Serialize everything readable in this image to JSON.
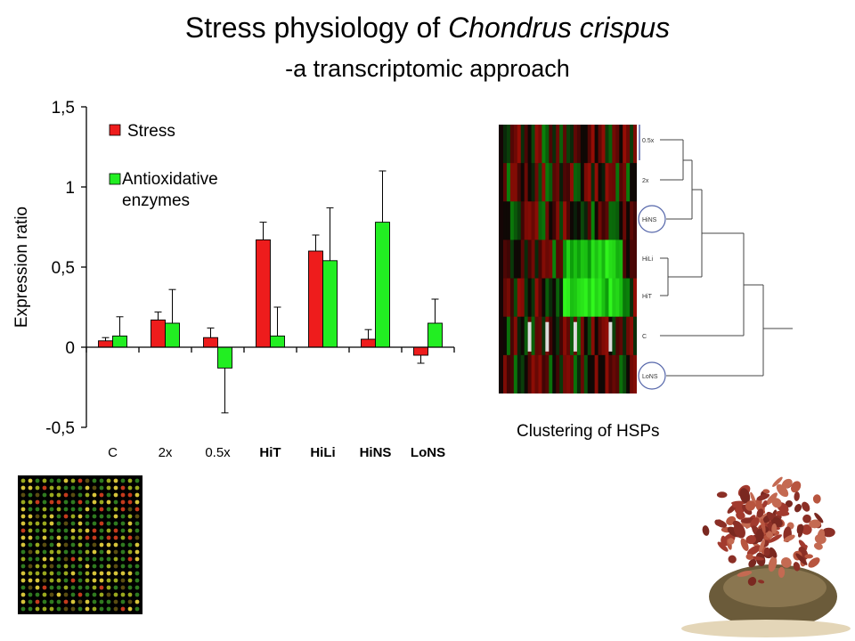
{
  "slide": {
    "title_main": "Stress physiology of ",
    "title_italic": "Chondrus crispus",
    "subtitle": "-a transcriptomic approach"
  },
  "chart_data": {
    "type": "bar",
    "categories": [
      "C",
      "2x",
      "0.5x",
      "HiT",
      "HiLi",
      "HiNS",
      "LoNS"
    ],
    "category_bold": [
      false,
      false,
      false,
      true,
      true,
      true,
      true
    ],
    "ylabel": "Expression ratio",
    "ylim": [
      -0.5,
      1.5
    ],
    "yticks": [
      -0.5,
      0,
      0.5,
      1,
      1.5
    ],
    "ytick_labels": [
      "-0,5",
      "0",
      "0,5",
      "1",
      "1,5"
    ],
    "legend_position": "top-left",
    "series": [
      {
        "name": "Stress",
        "color": "#ee1c1c",
        "values": [
          0.04,
          0.17,
          0.06,
          0.67,
          0.6,
          0.05,
          -0.05
        ],
        "errors": [
          0.02,
          0.05,
          0.06,
          0.11,
          0.1,
          0.06,
          0.05
        ]
      },
      {
        "name": "Antioxidative enzymes",
        "name_lines": [
          "Antioxidative",
          "enzymes"
        ],
        "color": "#22ee22",
        "values": [
          0.07,
          0.15,
          -0.13,
          0.07,
          0.54,
          0.78,
          0.15
        ],
        "errors": [
          0.12,
          0.21,
          0.28,
          0.18,
          0.33,
          0.32,
          0.15
        ]
      }
    ]
  },
  "heatmap": {
    "caption": "Clustering of HSPs",
    "row_labels": [
      "0.5x",
      "2x",
      "HiNS",
      "HiLi",
      "HiT",
      "C",
      "LoNS"
    ],
    "circled_labels": [
      "HiNS",
      "LoNS"
    ]
  }
}
